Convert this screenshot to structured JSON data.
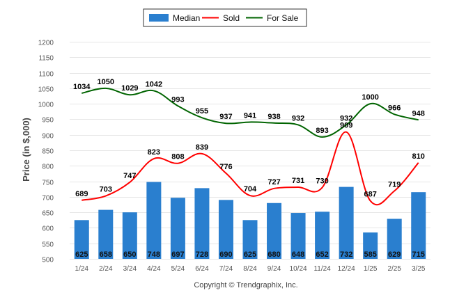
{
  "chart_data": {
    "type": "bar",
    "categories": [
      "1/24",
      "2/24",
      "3/24",
      "4/24",
      "5/24",
      "6/24",
      "7/24",
      "8/24",
      "9/24",
      "10/24",
      "11/24",
      "12/24",
      "1/25",
      "2/25",
      "3/25"
    ],
    "series": [
      {
        "name": "Median",
        "kind": "bar",
        "color": "#2a7fcf",
        "values": [
          625,
          658,
          650,
          748,
          697,
          728,
          690,
          625,
          680,
          648,
          652,
          732,
          585,
          629,
          715
        ]
      },
      {
        "name": "Sold",
        "kind": "line",
        "color": "#ff0000",
        "values": [
          689,
          703,
          747,
          823,
          808,
          839,
          776,
          704,
          727,
          731,
          730,
          909,
          687,
          719,
          810
        ]
      },
      {
        "name": "For Sale",
        "kind": "line",
        "color": "#006400",
        "values": [
          1034,
          1050,
          1029,
          1042,
          993,
          955,
          937,
          941,
          938,
          932,
          893,
          932,
          1000,
          966,
          948
        ]
      }
    ],
    "ylabel": "Price (in $,000)",
    "ylim": [
      500,
      1200
    ],
    "yticks": [
      500,
      550,
      600,
      650,
      700,
      750,
      800,
      850,
      900,
      950,
      1000,
      1050,
      1100,
      1150,
      1200
    ],
    "grid": true,
    "legend_position": "top-center"
  },
  "footer": "Copyright © Trendgraphix, Inc."
}
